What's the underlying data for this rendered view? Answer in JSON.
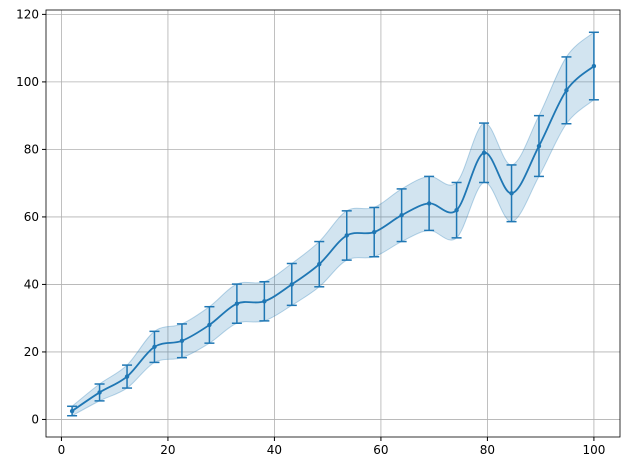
{
  "chart_data": {
    "type": "errorbar",
    "x": [
      2,
      7.16,
      12.32,
      17.47,
      22.63,
      27.79,
      32.95,
      38.11,
      43.26,
      48.42,
      53.58,
      58.74,
      63.89,
      69.05,
      74.21,
      79.37,
      84.53,
      89.68,
      94.84,
      100
    ],
    "values": [
      2.5,
      8,
      12.7,
      21.5,
      23.3,
      28,
      34.3,
      35,
      40,
      46,
      54.5,
      55.5,
      60.5,
      64,
      62,
      79,
      67,
      81,
      97.5,
      104.7
    ],
    "errors": [
      1.4,
      2.5,
      3.4,
      4.6,
      5,
      5.4,
      5.8,
      5.8,
      6.2,
      6.7,
      7.3,
      7.3,
      7.8,
      8,
      8.2,
      8.8,
      8.4,
      9,
      9.9,
      10
    ],
    "color": "#1f77b4",
    "xlim": [
      -2.9,
      104.9
    ],
    "ylim": [
      -5.2,
      121.3
    ],
    "xticks": [
      0,
      20,
      40,
      60,
      80,
      100
    ],
    "yticks": [
      0,
      20,
      40,
      60,
      80,
      100,
      120
    ],
    "grid": true
  }
}
